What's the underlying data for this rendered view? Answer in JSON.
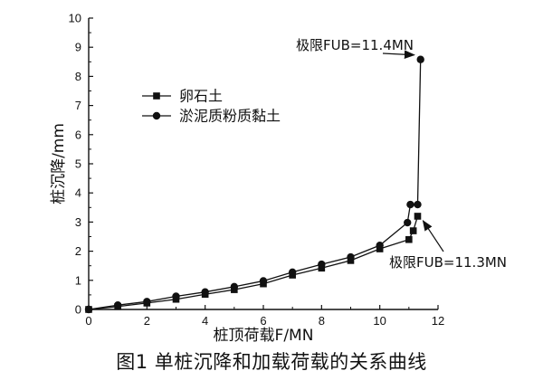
{
  "caption": "图1  单桩沉降和加载荷载的关系曲线",
  "chart_data": {
    "type": "line",
    "xlabel": "桩顶荷载F/MN",
    "ylabel": "桩沉降/mm",
    "xlim": [
      0,
      12
    ],
    "ylim": [
      0,
      10
    ],
    "x_ticks": [
      "0",
      "2",
      "4",
      "6",
      "8",
      "10",
      "12"
    ],
    "y_ticks": [
      "0",
      "1",
      "2",
      "3",
      "4",
      "5",
      "6",
      "7",
      "8",
      "9",
      "10"
    ],
    "legend_position": "upper-left",
    "series": [
      {
        "name": "卵石土",
        "marker": "square",
        "color": "#111111",
        "points": [
          {
            "x": 0,
            "y": 0.0
          },
          {
            "x": 1,
            "y": 0.1
          },
          {
            "x": 2,
            "y": 0.22
          },
          {
            "x": 3,
            "y": 0.35
          },
          {
            "x": 4,
            "y": 0.52
          },
          {
            "x": 5,
            "y": 0.68
          },
          {
            "x": 6,
            "y": 0.88
          },
          {
            "x": 7,
            "y": 1.18
          },
          {
            "x": 8,
            "y": 1.42
          },
          {
            "x": 9,
            "y": 1.68
          },
          {
            "x": 10,
            "y": 2.08
          },
          {
            "x": 11,
            "y": 2.4
          },
          {
            "x": 11.15,
            "y": 2.7
          },
          {
            "x": 11.3,
            "y": 3.2
          }
        ]
      },
      {
        "name": "淤泥质粉质黏土",
        "marker": "circle",
        "color": "#111111",
        "points": [
          {
            "x": 0,
            "y": 0.0
          },
          {
            "x": 1,
            "y": 0.15
          },
          {
            "x": 2,
            "y": 0.27
          },
          {
            "x": 3,
            "y": 0.45
          },
          {
            "x": 4,
            "y": 0.6
          },
          {
            "x": 5,
            "y": 0.78
          },
          {
            "x": 6,
            "y": 0.98
          },
          {
            "x": 7,
            "y": 1.28
          },
          {
            "x": 8,
            "y": 1.55
          },
          {
            "x": 9,
            "y": 1.8
          },
          {
            "x": 10,
            "y": 2.2
          },
          {
            "x": 10.95,
            "y": 2.98
          },
          {
            "x": 11.05,
            "y": 3.6
          },
          {
            "x": 11.3,
            "y": 3.6
          },
          {
            "x": 11.4,
            "y": 8.58
          }
        ]
      }
    ],
    "annotations": [
      {
        "text": "极限FUB=11.4MN",
        "points_to": {
          "x": 11.4,
          "y": 8.58
        }
      },
      {
        "text": "极限FUB=11.3MN",
        "points_to": {
          "x": 11.3,
          "y": 3.2
        }
      }
    ]
  }
}
